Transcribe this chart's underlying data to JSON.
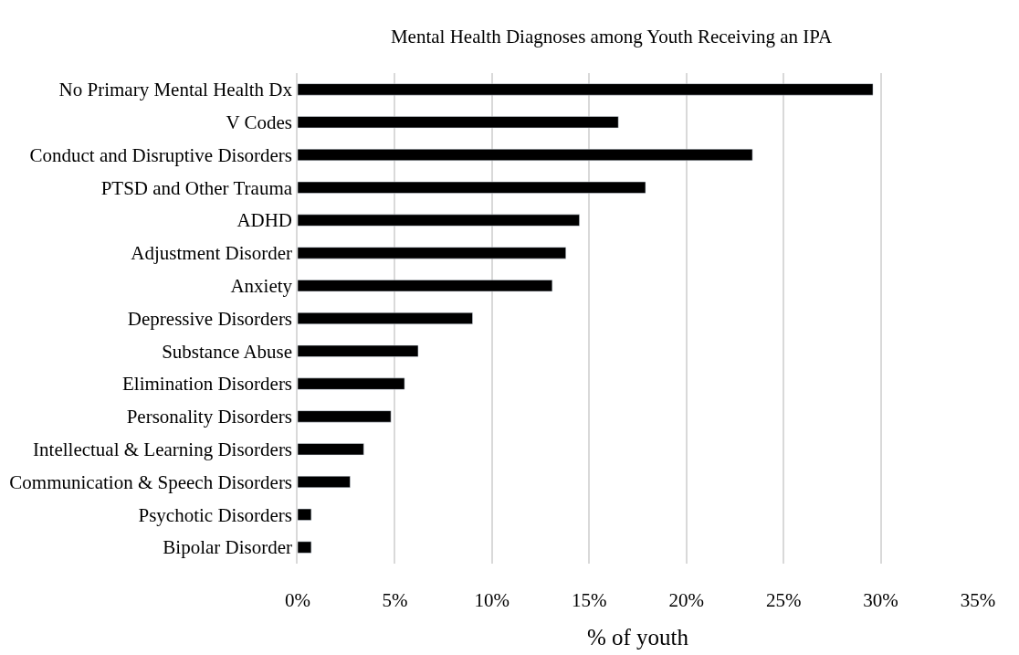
{
  "chart_data": {
    "type": "bar",
    "orientation": "horizontal",
    "title": "Mental Health Diagnoses among Youth Receiving an IPA",
    "xlabel": "% of youth",
    "categories": [
      "No Primary Mental Health Dx",
      "V Codes",
      "Conduct and Disruptive Disorders",
      "PTSD and Other Trauma",
      "ADHD",
      "Adjustment Disorder",
      "Anxiety",
      "Depressive Disorders",
      "Substance Abuse",
      "Elimination Disorders",
      "Personality Disorders",
      "Intellectual & Learning Disorders",
      "Communication & Speech Disorders",
      "Psychotic Disorders",
      "Bipolar Disorder"
    ],
    "values": [
      29.6,
      16.5,
      23.4,
      17.9,
      14.5,
      13.8,
      13.1,
      9.0,
      6.2,
      5.5,
      4.8,
      3.4,
      2.7,
      0.7,
      0.7
    ],
    "color": "#000000",
    "xlim": [
      0,
      35
    ],
    "xticks": [
      {
        "value": 0,
        "label": "0%"
      },
      {
        "value": 5,
        "label": "5%"
      },
      {
        "value": 10,
        "label": "10%"
      },
      {
        "value": 15,
        "label": "15%"
      },
      {
        "value": 20,
        "label": "20%"
      },
      {
        "value": 25,
        "label": "25%"
      },
      {
        "value": 30,
        "label": "30%"
      },
      {
        "value": 35,
        "label": "35%"
      }
    ],
    "grid": "x"
  }
}
